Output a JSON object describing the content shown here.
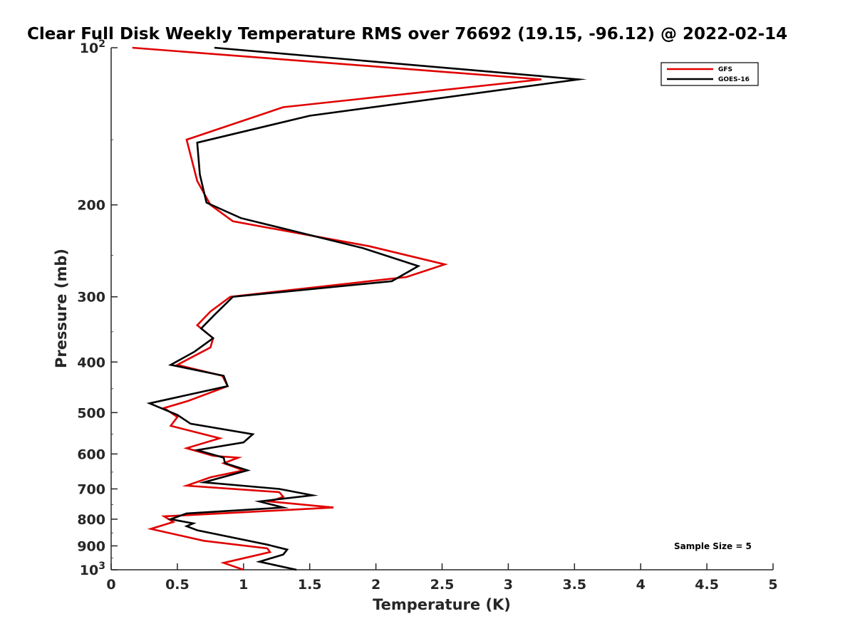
{
  "chart_data": {
    "type": "line",
    "title": "Clear Full Disk Weekly Temperature RMS over 76692 (19.15, -96.12) @ 2022-02-14",
    "xlabel": "Temperature (K)",
    "ylabel": "Pressure (mb)",
    "xlim": [
      0,
      5
    ],
    "ylim": [
      100,
      1000
    ],
    "y_scale": "log",
    "y_reversed": true,
    "legend_position": "top-right",
    "annotation": "Sample Size = 5",
    "x_ticks": [
      {
        "value": 0,
        "label": "0"
      },
      {
        "value": 0.5,
        "label": "0.5"
      },
      {
        "value": 1,
        "label": "1"
      },
      {
        "value": 1.5,
        "label": "1.5"
      },
      {
        "value": 2,
        "label": "2"
      },
      {
        "value": 2.5,
        "label": "2.5"
      },
      {
        "value": 3,
        "label": "3"
      },
      {
        "value": 3.5,
        "label": "3.5"
      },
      {
        "value": 4,
        "label": "4"
      },
      {
        "value": 4.5,
        "label": "4.5"
      },
      {
        "value": 5,
        "label": "5"
      }
    ],
    "y_ticks": [
      {
        "value": 100,
        "base": "10",
        "exp": "2"
      },
      {
        "value": 200,
        "label": "200"
      },
      {
        "value": 300,
        "label": "300"
      },
      {
        "value": 400,
        "label": "400"
      },
      {
        "value": 500,
        "label": "500"
      },
      {
        "value": 600,
        "label": "600"
      },
      {
        "value": 700,
        "label": "700"
      },
      {
        "value": 800,
        "label": "800"
      },
      {
        "value": 900,
        "label": "900"
      },
      {
        "value": 1000,
        "base": "10",
        "exp": "3"
      }
    ],
    "series": [
      {
        "name": "GFS",
        "color": "#e00000",
        "points": [
          [
            0.16,
            100
          ],
          [
            3.25,
            115
          ],
          [
            1.3,
            130
          ],
          [
            0.57,
            150
          ],
          [
            0.65,
            180
          ],
          [
            0.75,
            200
          ],
          [
            0.92,
            215
          ],
          [
            1.95,
            240
          ],
          [
            2.52,
            260
          ],
          [
            2.23,
            275
          ],
          [
            0.9,
            300
          ],
          [
            0.75,
            320
          ],
          [
            0.65,
            340
          ],
          [
            0.77,
            360
          ],
          [
            0.75,
            375
          ],
          [
            0.5,
            405
          ],
          [
            0.84,
            425
          ],
          [
            0.88,
            445
          ],
          [
            0.58,
            475
          ],
          [
            0.4,
            490
          ],
          [
            0.5,
            510
          ],
          [
            0.45,
            530
          ],
          [
            0.82,
            560
          ],
          [
            0.57,
            585
          ],
          [
            0.77,
            605
          ],
          [
            0.96,
            610
          ],
          [
            0.85,
            625
          ],
          [
            1.0,
            645
          ],
          [
            0.75,
            665
          ],
          [
            0.57,
            690
          ],
          [
            1.27,
            710
          ],
          [
            1.3,
            725
          ],
          [
            1.2,
            740
          ],
          [
            1.68,
            760
          ],
          [
            0.4,
            790
          ],
          [
            0.47,
            810
          ],
          [
            0.3,
            835
          ],
          [
            0.7,
            880
          ],
          [
            1.18,
            910
          ],
          [
            1.2,
            925
          ],
          [
            0.85,
            970
          ],
          [
            1.0,
            1000
          ]
        ]
      },
      {
        "name": "GOES-16",
        "color": "#000000",
        "points": [
          [
            0.78,
            100
          ],
          [
            3.53,
            115
          ],
          [
            1.5,
            135
          ],
          [
            0.65,
            152
          ],
          [
            0.67,
            175
          ],
          [
            0.72,
            198
          ],
          [
            0.98,
            212
          ],
          [
            1.9,
            242
          ],
          [
            2.32,
            262
          ],
          [
            2.12,
            280
          ],
          [
            0.92,
            300
          ],
          [
            0.78,
            325
          ],
          [
            0.68,
            345
          ],
          [
            0.77,
            360
          ],
          [
            0.63,
            382
          ],
          [
            0.45,
            405
          ],
          [
            0.85,
            425
          ],
          [
            0.88,
            445
          ],
          [
            0.29,
            480
          ],
          [
            0.5,
            505
          ],
          [
            0.6,
            525
          ],
          [
            1.07,
            550
          ],
          [
            1.0,
            570
          ],
          [
            0.65,
            590
          ],
          [
            0.85,
            610
          ],
          [
            0.86,
            625
          ],
          [
            1.03,
            645
          ],
          [
            0.7,
            680
          ],
          [
            1.27,
            700
          ],
          [
            1.52,
            720
          ],
          [
            1.12,
            740
          ],
          [
            1.3,
            760
          ],
          [
            0.57,
            780
          ],
          [
            0.45,
            800
          ],
          [
            0.62,
            815
          ],
          [
            0.57,
            825
          ],
          [
            0.65,
            840
          ],
          [
            1.18,
            895
          ],
          [
            1.33,
            915
          ],
          [
            1.3,
            935
          ],
          [
            1.12,
            965
          ],
          [
            1.4,
            1000
          ]
        ]
      }
    ]
  }
}
